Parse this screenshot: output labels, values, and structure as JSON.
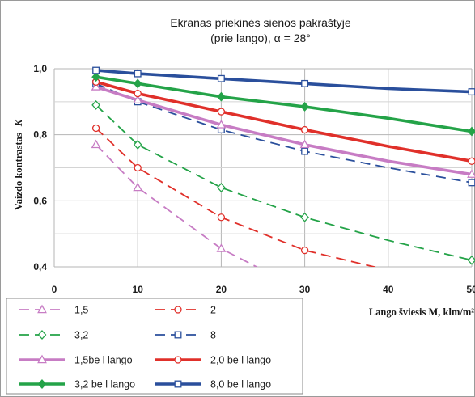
{
  "chart_data": {
    "type": "line",
    "title": [
      "Ekranas priekinės sienos pakraštyje",
      "(prie lango), α = 28°"
    ],
    "xlabel": "Lango šviesis M, klm/m²",
    "ylabel": "Vaizdo kontrastas",
    "ylabel_symbol": "K",
    "xlim": [
      0,
      50
    ],
    "ylim": [
      0.4,
      1.0
    ],
    "x_ticks": [
      "0",
      "10",
      "20",
      "30",
      "40",
      "50"
    ],
    "y_ticks": [
      "0,4",
      "0,6",
      "0,8",
      "1,0"
    ],
    "grid": true,
    "legend_position": "bottom-left",
    "series": [
      {
        "name": "1,5",
        "style": "dashed",
        "marker": "triangle",
        "color": "#c77cc4",
        "points": [
          [
            5,
            0.77
          ],
          [
            10,
            0.64
          ],
          [
            20,
            0.455
          ],
          [
            25,
            0.39
          ]
        ],
        "markers_at": [
          5,
          10,
          20
        ]
      },
      {
        "name": "2",
        "style": "dashed",
        "marker": "circle",
        "color": "#e0302a",
        "points": [
          [
            5,
            0.82
          ],
          [
            10,
            0.7
          ],
          [
            20,
            0.55
          ],
          [
            30,
            0.45
          ],
          [
            40,
            0.39
          ]
        ],
        "markers_at": [
          5,
          10,
          20,
          30
        ]
      },
      {
        "name": "3,2",
        "style": "dashed",
        "marker": "diamond",
        "color": "#24a348",
        "points": [
          [
            5,
            0.89
          ],
          [
            10,
            0.77
          ],
          [
            20,
            0.64
          ],
          [
            30,
            0.55
          ],
          [
            40,
            0.48
          ],
          [
            50,
            0.42
          ]
        ],
        "markers_at": [
          5,
          10,
          20,
          30,
          50
        ]
      },
      {
        "name": "8",
        "style": "dashed",
        "marker": "square",
        "color": "#2a4f9c",
        "points": [
          [
            5,
            0.955
          ],
          [
            10,
            0.9
          ],
          [
            20,
            0.815
          ],
          [
            30,
            0.75
          ],
          [
            40,
            0.7
          ],
          [
            50,
            0.655
          ]
        ],
        "markers_at": [
          5,
          10,
          20,
          30,
          50
        ]
      },
      {
        "name": "1,5be l lango",
        "style": "solid",
        "marker": "triangle",
        "color": "#c77cc4",
        "points": [
          [
            5,
            0.945
          ],
          [
            10,
            0.905
          ],
          [
            20,
            0.83
          ],
          [
            30,
            0.77
          ],
          [
            40,
            0.72
          ],
          [
            50,
            0.68
          ]
        ],
        "markers_at": [
          5,
          10,
          20,
          30,
          50
        ]
      },
      {
        "name": "2,0 be l lango",
        "style": "solid",
        "marker": "circle",
        "color": "#e0302a",
        "points": [
          [
            5,
            0.96
          ],
          [
            10,
            0.925
          ],
          [
            20,
            0.87
          ],
          [
            30,
            0.815
          ],
          [
            40,
            0.765
          ],
          [
            50,
            0.72
          ]
        ],
        "markers_at": [
          5,
          10,
          20,
          30,
          50
        ]
      },
      {
        "name": "3,2 be l lango",
        "style": "solid",
        "marker": "diamond",
        "color": "#24a348",
        "points": [
          [
            5,
            0.975
          ],
          [
            10,
            0.955
          ],
          [
            20,
            0.915
          ],
          [
            30,
            0.885
          ],
          [
            40,
            0.85
          ],
          [
            50,
            0.81
          ]
        ],
        "markers_at": [
          5,
          10,
          20,
          30,
          50
        ]
      },
      {
        "name": "8,0 be l lango",
        "style": "solid",
        "marker": "square",
        "color": "#2a4f9c",
        "points": [
          [
            5,
            0.995
          ],
          [
            10,
            0.985
          ],
          [
            20,
            0.97
          ],
          [
            30,
            0.955
          ],
          [
            40,
            0.94
          ],
          [
            50,
            0.93
          ]
        ],
        "markers_at": [
          5,
          10,
          20,
          30,
          50
        ]
      }
    ]
  }
}
